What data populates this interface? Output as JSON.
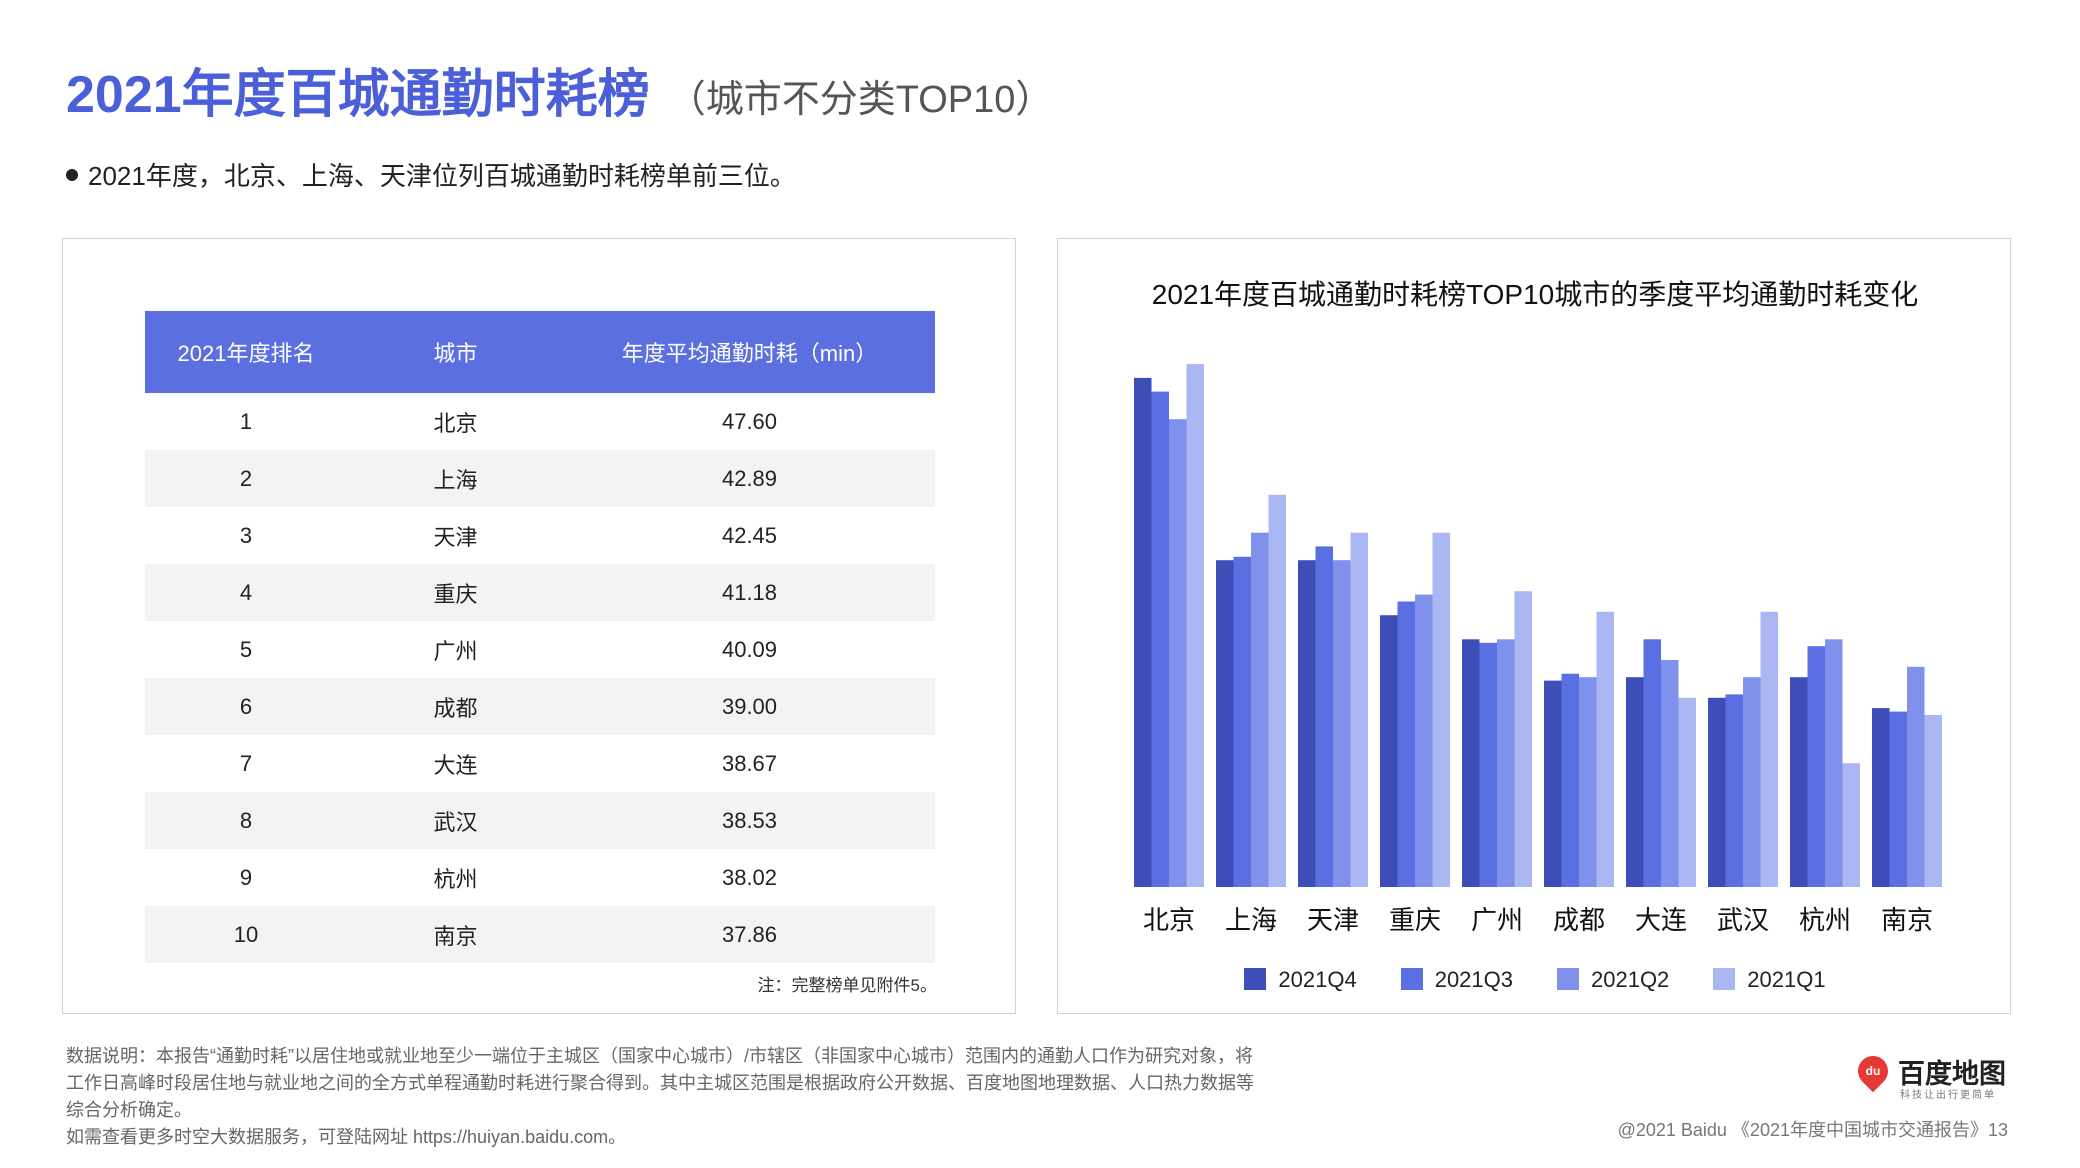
{
  "header": {
    "title": "2021年度百城通勤时耗榜",
    "subtitle": "（城市不分类TOP10）",
    "bullet": "2021年度，北京、上海、天津位列百城通勤时耗榜单前三位。"
  },
  "table": {
    "headers": [
      "2021年度排名",
      "城市",
      "年度平均通勤时耗（min）"
    ],
    "rows": [
      {
        "rank": "1",
        "city": "北京",
        "value": "47.60"
      },
      {
        "rank": "2",
        "city": "上海",
        "value": "42.89"
      },
      {
        "rank": "3",
        "city": "天津",
        "value": "42.45"
      },
      {
        "rank": "4",
        "city": "重庆",
        "value": "41.18"
      },
      {
        "rank": "5",
        "city": "广州",
        "value": "40.09"
      },
      {
        "rank": "6",
        "city": "成都",
        "value": "39.00"
      },
      {
        "rank": "7",
        "city": "大连",
        "value": "38.67"
      },
      {
        "rank": "8",
        "city": "武汉",
        "value": "38.53"
      },
      {
        "rank": "9",
        "city": "杭州",
        "value": "38.02"
      },
      {
        "rank": "10",
        "city": "南京",
        "value": "37.86"
      }
    ],
    "note": "注：完整榜单见附件5。"
  },
  "chart_data": {
    "type": "bar",
    "title": "2021年度百城通勤时耗榜TOP10城市的季度平均通勤时耗变化",
    "xlabel": "",
    "ylabel": "",
    "ylim": [
      33,
      48
    ],
    "grid": false,
    "legend_position": "bottom",
    "categories": [
      "北京",
      "上海",
      "天津",
      "重庆",
      "广州",
      "成都",
      "大连",
      "武汉",
      "杭州",
      "南京"
    ],
    "series": [
      {
        "name": "2021Q4",
        "color": "#3d4eb8",
        "values": [
          47.8,
          42.5,
          42.5,
          40.9,
          40.2,
          39.0,
          39.1,
          38.5,
          39.1,
          38.2
        ]
      },
      {
        "name": "2021Q3",
        "color": "#5a6fe2",
        "values": [
          47.4,
          42.6,
          42.9,
          41.3,
          40.1,
          39.2,
          40.2,
          38.6,
          40.0,
          38.1
        ]
      },
      {
        "name": "2021Q2",
        "color": "#8091eb",
        "values": [
          46.6,
          43.3,
          42.5,
          41.5,
          40.2,
          39.1,
          39.6,
          39.1,
          40.2,
          39.4
        ]
      },
      {
        "name": "2021Q1",
        "color": "#abb7f2",
        "values": [
          48.2,
          44.4,
          43.3,
          43.3,
          41.6,
          41.0,
          38.5,
          41.0,
          36.6,
          38.0
        ]
      }
    ]
  },
  "footer": {
    "notes": [
      "数据说明：本报告“通勤时耗”以居住地或就业地至少一端位于主城区（国家中心城市）/市辖区（非国家中心城市）范围内的通勤人口作为研究对象，将",
      "工作日高峰时段居住地与就业地之间的全方式单程通勤时耗进行聚合得到。其中主城区范围是根据政府公开数据、百度地图地理数据、人口热力数据等",
      "综合分析确定。",
      "如需查看更多时空大数据服务，可登陆网址 https://huiyan.baidu.com。"
    ],
    "logo_badge": "du",
    "logo_name": "百度地图",
    "logo_slogan": "科技让出行更简单",
    "copyright": "@2021 Baidu 《2021年度中国城市交通报告》13"
  }
}
